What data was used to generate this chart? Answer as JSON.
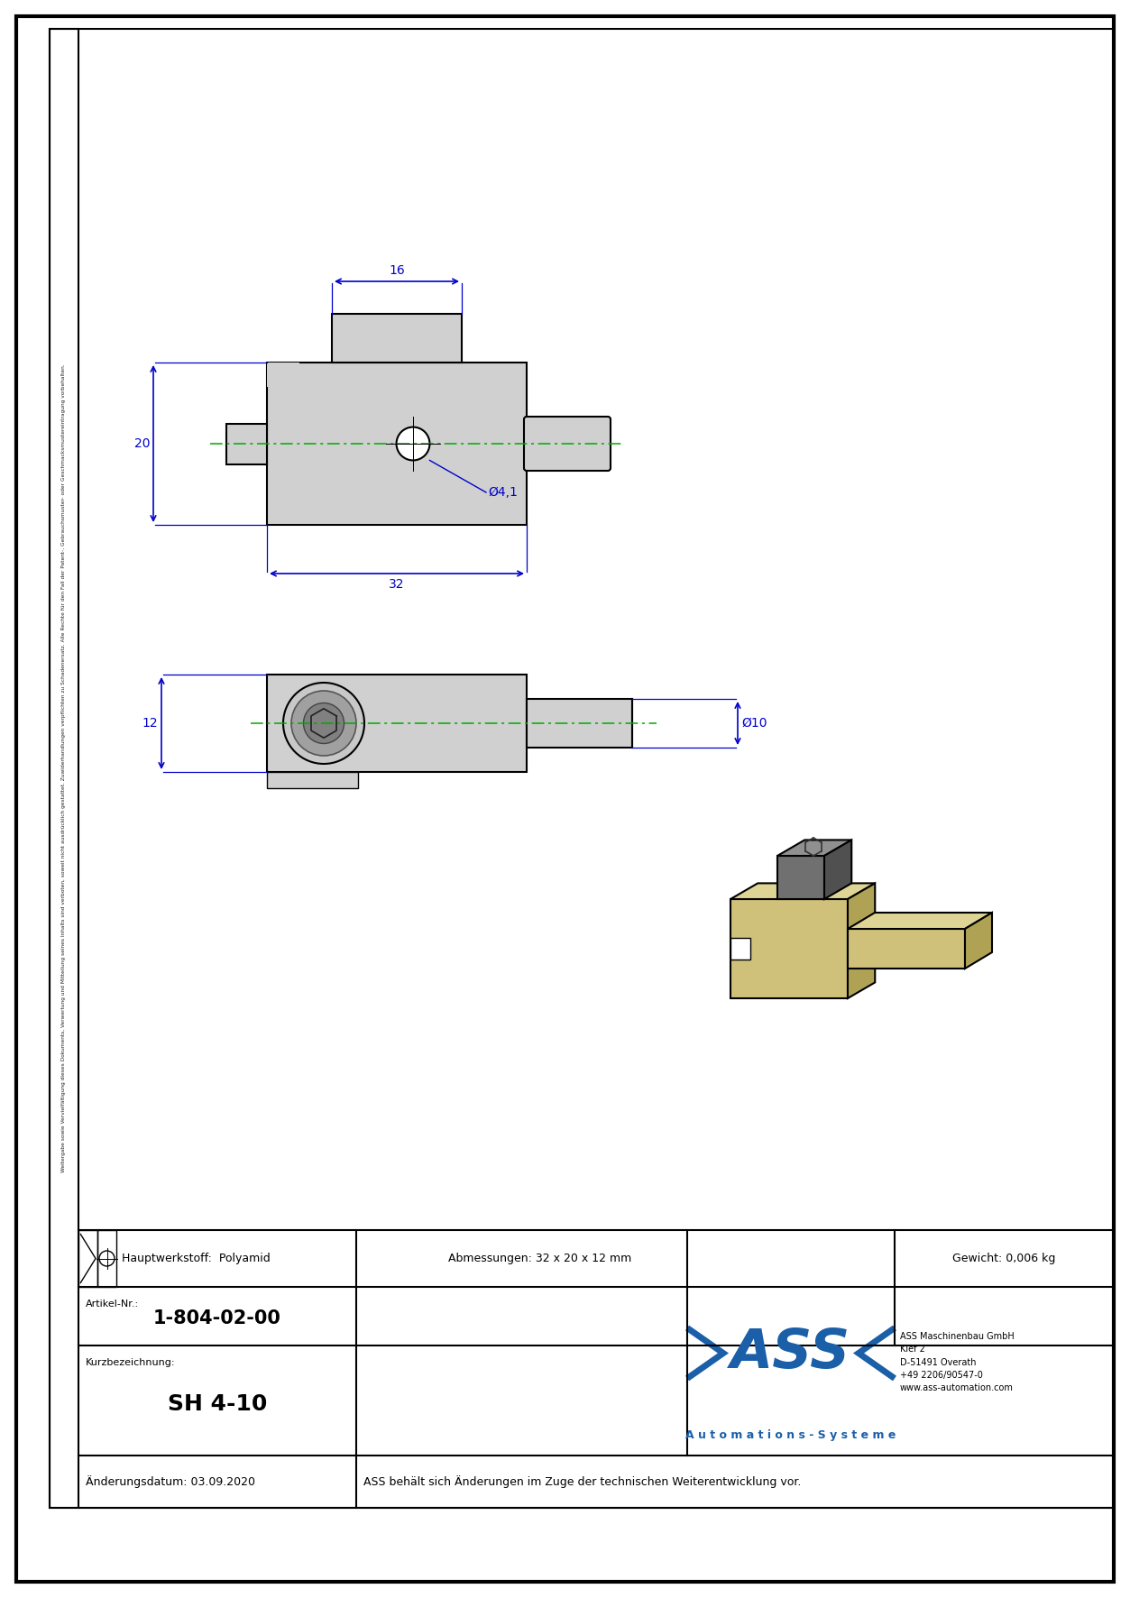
{
  "page_bg": "#ffffff",
  "border_color": "#000000",
  "dim_color": "#0000cd",
  "green_dash": "#00aa00",
  "title": "SH 4-10",
  "article_nr": "1-804-02-00",
  "material": "Hauptwerkstoff:  Polyamid",
  "dimensions": "Abmessungen: 32 x 20 x 12 mm",
  "weight": "Gewicht: 0,006 kg",
  "short_desc_label": "Kurzbezeichnung:",
  "article_label": "Artikel-Nr.:",
  "change_date": "Änderungsdatum: 03.09.2020",
  "change_note": "ASS behält sich Änderungen im Zuge der technischen Weiterentwicklung vor.",
  "company_name": "ASS Maschinenbau GmbH",
  "company_addr1": "Klef 2",
  "company_addr2": "D-51491 Overath",
  "company_phone": "+49 2206/90547-0",
  "company_web": "www.ass-automation.com",
  "company_brand": "A u t o m a t i o n s - S y s t e m e",
  "vertical_text": "Weitergabe sowie Vervielfältigung dieses Dokuments, Verwertung und Mitteilung seines Inhalts sind verboten, soweit nicht ausdrücklich gestattet. Zuwiderhandlungen verpflichten zu Schadenersatz. Alle Rechte für den Fall der Patent-, Gebrauchsmuster- oder Geschmacksmustereintragung vorbehalten.",
  "dim_32": "32",
  "dim_20": "20",
  "dim_16": "16",
  "dim_dia41": "Ø4,1",
  "dim_12": "12",
  "dim_dia10": "Ø10"
}
